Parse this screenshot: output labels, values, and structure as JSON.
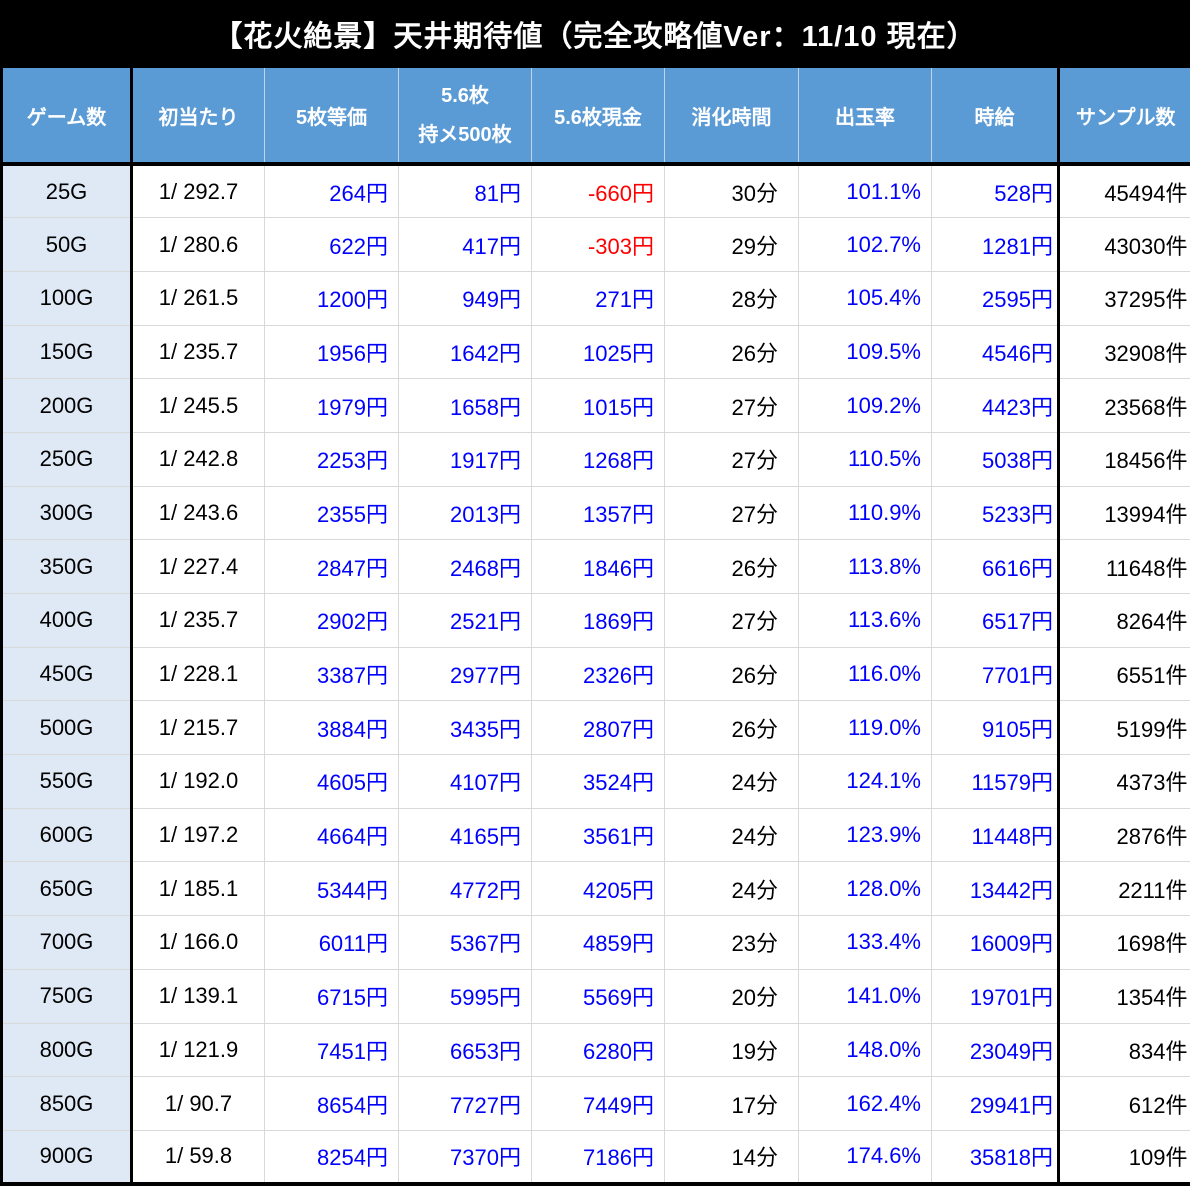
{
  "title": "【花火絶景】天井期待値（完全攻略値Ver：11/10 現在）",
  "colors": {
    "title_bg": "#000000",
    "header_bg": "#5b9bd5",
    "row_label_bg": "#dee9f5",
    "value_blue": "#0000ff",
    "negative_red": "#ff0000",
    "grid_line": "#d9d9d9",
    "strong_border": "#000000"
  },
  "chart_data": {
    "type": "table",
    "title": "【花火絶景】天井期待値（完全攻略値Ver：11/10 現在）",
    "columns": [
      {
        "label": "ゲーム数"
      },
      {
        "label": "初当たり"
      },
      {
        "label": "5枚等価"
      },
      {
        "label": "5.6枚",
        "label2": "持メ500枚"
      },
      {
        "label": "5.6枚現金"
      },
      {
        "label": "消化時間"
      },
      {
        "label": "出玉率"
      },
      {
        "label": "時給"
      },
      {
        "label": "サンプル数"
      }
    ],
    "rows": [
      {
        "games": "25G",
        "first_hit": "1/ 292.7",
        "five_equal": "264円",
        "five6_hold": "81円",
        "five6_cash": "-660円",
        "time": "30分",
        "payout": "101.1%",
        "hourly": "528円",
        "samples": "45494件"
      },
      {
        "games": "50G",
        "first_hit": "1/ 280.6",
        "five_equal": "622円",
        "five6_hold": "417円",
        "five6_cash": "-303円",
        "time": "29分",
        "payout": "102.7%",
        "hourly": "1281円",
        "samples": "43030件"
      },
      {
        "games": "100G",
        "first_hit": "1/ 261.5",
        "five_equal": "1200円",
        "five6_hold": "949円",
        "five6_cash": "271円",
        "time": "28分",
        "payout": "105.4%",
        "hourly": "2595円",
        "samples": "37295件"
      },
      {
        "games": "150G",
        "first_hit": "1/ 235.7",
        "five_equal": "1956円",
        "five6_hold": "1642円",
        "five6_cash": "1025円",
        "time": "26分",
        "payout": "109.5%",
        "hourly": "4546円",
        "samples": "32908件"
      },
      {
        "games": "200G",
        "first_hit": "1/ 245.5",
        "five_equal": "1979円",
        "five6_hold": "1658円",
        "five6_cash": "1015円",
        "time": "27分",
        "payout": "109.2%",
        "hourly": "4423円",
        "samples": "23568件"
      },
      {
        "games": "250G",
        "first_hit": "1/ 242.8",
        "five_equal": "2253円",
        "five6_hold": "1917円",
        "five6_cash": "1268円",
        "time": "27分",
        "payout": "110.5%",
        "hourly": "5038円",
        "samples": "18456件"
      },
      {
        "games": "300G",
        "first_hit": "1/ 243.6",
        "five_equal": "2355円",
        "five6_hold": "2013円",
        "five6_cash": "1357円",
        "time": "27分",
        "payout": "110.9%",
        "hourly": "5233円",
        "samples": "13994件"
      },
      {
        "games": "350G",
        "first_hit": "1/ 227.4",
        "five_equal": "2847円",
        "five6_hold": "2468円",
        "five6_cash": "1846円",
        "time": "26分",
        "payout": "113.8%",
        "hourly": "6616円",
        "samples": "11648件"
      },
      {
        "games": "400G",
        "first_hit": "1/ 235.7",
        "five_equal": "2902円",
        "five6_hold": "2521円",
        "five6_cash": "1869円",
        "time": "27分",
        "payout": "113.6%",
        "hourly": "6517円",
        "samples": "8264件"
      },
      {
        "games": "450G",
        "first_hit": "1/ 228.1",
        "five_equal": "3387円",
        "five6_hold": "2977円",
        "five6_cash": "2326円",
        "time": "26分",
        "payout": "116.0%",
        "hourly": "7701円",
        "samples": "6551件"
      },
      {
        "games": "500G",
        "first_hit": "1/ 215.7",
        "five_equal": "3884円",
        "five6_hold": "3435円",
        "five6_cash": "2807円",
        "time": "26分",
        "payout": "119.0%",
        "hourly": "9105円",
        "samples": "5199件"
      },
      {
        "games": "550G",
        "first_hit": "1/ 192.0",
        "five_equal": "4605円",
        "five6_hold": "4107円",
        "five6_cash": "3524円",
        "time": "24分",
        "payout": "124.1%",
        "hourly": "11579円",
        "samples": "4373件"
      },
      {
        "games": "600G",
        "first_hit": "1/ 197.2",
        "five_equal": "4664円",
        "five6_hold": "4165円",
        "five6_cash": "3561円",
        "time": "24分",
        "payout": "123.9%",
        "hourly": "11448円",
        "samples": "2876件"
      },
      {
        "games": "650G",
        "first_hit": "1/ 185.1",
        "five_equal": "5344円",
        "five6_hold": "4772円",
        "five6_cash": "4205円",
        "time": "24分",
        "payout": "128.0%",
        "hourly": "13442円",
        "samples": "2211件"
      },
      {
        "games": "700G",
        "first_hit": "1/ 166.0",
        "five_equal": "6011円",
        "five6_hold": "5367円",
        "five6_cash": "4859円",
        "time": "23分",
        "payout": "133.4%",
        "hourly": "16009円",
        "samples": "1698件"
      },
      {
        "games": "750G",
        "first_hit": "1/ 139.1",
        "five_equal": "6715円",
        "five6_hold": "5995円",
        "five6_cash": "5569円",
        "time": "20分",
        "payout": "141.0%",
        "hourly": "19701円",
        "samples": "1354件"
      },
      {
        "games": "800G",
        "first_hit": "1/ 121.9",
        "five_equal": "7451円",
        "five6_hold": "6653円",
        "five6_cash": "6280円",
        "time": "19分",
        "payout": "148.0%",
        "hourly": "23049円",
        "samples": "834件"
      },
      {
        "games": "850G",
        "first_hit": "1/ 90.7",
        "five_equal": "8654円",
        "five6_hold": "7727円",
        "five6_cash": "7449円",
        "time": "17分",
        "payout": "162.4%",
        "hourly": "29941円",
        "samples": "612件"
      },
      {
        "games": "900G",
        "first_hit": "1/ 59.8",
        "five_equal": "8254円",
        "five6_hold": "7370円",
        "five6_cash": "7186円",
        "time": "14分",
        "payout": "174.6%",
        "hourly": "35818円",
        "samples": "109件"
      }
    ]
  }
}
